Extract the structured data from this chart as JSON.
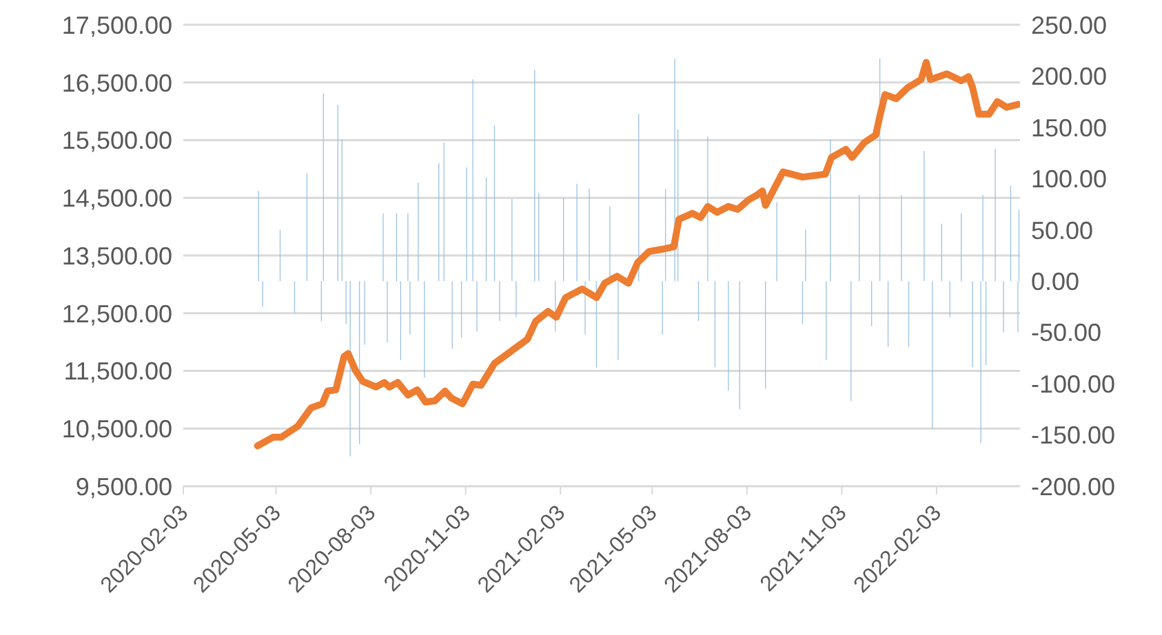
{
  "chart_data": {
    "type": "line",
    "grid": "y",
    "xlim": [
      "2020-02-03",
      "2022-04-25"
    ],
    "xticks": [
      "2020-02-03",
      "2020-05-03",
      "2020-08-03",
      "2020-11-03",
      "2021-02-03",
      "2021-05-03",
      "2021-08-03",
      "2021-11-03",
      "2022-02-03"
    ],
    "ylim": [
      9500,
      17500
    ],
    "yticks": [
      {
        "value": 9500,
        "label": "9,500.00"
      },
      {
        "value": 10500,
        "label": "10,500.00"
      },
      {
        "value": 11500,
        "label": "11,500.00"
      },
      {
        "value": 12500,
        "label": "12,500.00"
      },
      {
        "value": 13500,
        "label": "13,500.00"
      },
      {
        "value": 14500,
        "label": "14,500.00"
      },
      {
        "value": 15500,
        "label": "15,500.00"
      },
      {
        "value": 16500,
        "label": "16,500.00"
      },
      {
        "value": 17500,
        "label": "17,500.00"
      }
    ],
    "y2lim": [
      -200,
      250
    ],
    "y2ticks": [
      {
        "value": -200,
        "label": "-200.00"
      },
      {
        "value": -150,
        "label": "-150.00"
      },
      {
        "value": -100,
        "label": "-100.00"
      },
      {
        "value": -50,
        "label": "-50.00"
      },
      {
        "value": 0,
        "label": "0.00"
      },
      {
        "value": 50,
        "label": "50.00"
      },
      {
        "value": 100,
        "label": "100.00"
      },
      {
        "value": 150,
        "label": "150.00"
      },
      {
        "value": 200,
        "label": "200.00"
      },
      {
        "value": 250,
        "label": "250.00"
      }
    ],
    "series": [
      {
        "type": "bar",
        "axis": "y2",
        "color": "#9dc3e6",
        "x": [
          "2020-04-16",
          "2020-04-20",
          "2020-05-07",
          "2020-05-21",
          "2020-06-02",
          "2020-06-16",
          "2020-06-18",
          "2020-07-02",
          "2020-07-06",
          "2020-07-10",
          "2020-07-14",
          "2020-07-23",
          "2020-07-28",
          "2020-08-15",
          "2020-08-19",
          "2020-08-28",
          "2020-09-01",
          "2020-09-08",
          "2020-09-10",
          "2020-09-18",
          "2020-09-24",
          "2020-10-08",
          "2020-10-13",
          "2020-10-21",
          "2020-10-30",
          "2020-11-04",
          "2020-11-10",
          "2020-11-14",
          "2020-11-23",
          "2020-12-01",
          "2020-12-06",
          "2020-12-18",
          "2020-12-22",
          "2021-01-09",
          "2021-01-13",
          "2021-01-29",
          "2021-02-06",
          "2021-02-19",
          "2021-02-27",
          "2021-03-03",
          "2021-03-10",
          "2021-03-23",
          "2021-03-31",
          "2021-04-20",
          "2021-05-13",
          "2021-05-16",
          "2021-05-25",
          "2021-05-28",
          "2021-06-17",
          "2021-06-26",
          "2021-07-03",
          "2021-07-16",
          "2021-07-27",
          "2021-08-21",
          "2021-09-01",
          "2021-09-26",
          "2021-09-29",
          "2021-10-19",
          "2021-10-23",
          "2021-11-12",
          "2021-11-20",
          "2021-12-02",
          "2021-12-10",
          "2021-12-18",
          "2021-12-31",
          "2022-01-07",
          "2022-01-22",
          "2022-01-30",
          "2022-02-08",
          "2022-02-16",
          "2022-02-27",
          "2022-03-10",
          "2022-03-18",
          "2022-03-20",
          "2022-03-23",
          "2022-04-01",
          "2022-04-09",
          "2022-04-16",
          "2022-04-23",
          "2022-04-24"
        ],
        "values": [
          88,
          -25,
          50,
          -31,
          105,
          -39,
          183,
          172,
          138,
          -42,
          -171,
          -159,
          -62,
          66,
          -60,
          66,
          -77,
          66,
          -52,
          96,
          -94,
          115,
          135,
          -66,
          -55,
          111,
          197,
          -49,
          101,
          152,
          -39,
          80,
          -35,
          206,
          86,
          -49,
          81,
          95,
          -52,
          90,
          -84,
          73,
          -77,
          163,
          -52,
          90,
          217,
          148,
          -39,
          141,
          -84,
          -107,
          -125,
          -105,
          77,
          -42,
          50,
          -77,
          138,
          -117,
          84,
          -44,
          217,
          -64,
          84,
          -64,
          127,
          -144,
          56,
          -35,
          66,
          -84,
          -158,
          84,
          -82,
          129,
          -50,
          93,
          -50,
          70
        ]
      },
      {
        "axis": "y",
        "color": "#ed7d31",
        "x": [
          "2020-04-15",
          "2020-04-30",
          "2020-05-08",
          "2020-05-24",
          "2020-06-06",
          "2020-06-17",
          "2020-06-22",
          "2020-06-30",
          "2020-07-08",
          "2020-07-12",
          "2020-07-19",
          "2020-07-26",
          "2020-08-08",
          "2020-08-16",
          "2020-08-21",
          "2020-08-29",
          "2020-09-08",
          "2020-09-17",
          "2020-09-25",
          "2020-10-04",
          "2020-10-14",
          "2020-10-20",
          "2020-10-31",
          "2020-11-10",
          "2020-11-18",
          "2020-12-01",
          "2020-12-14",
          "2021-01-02",
          "2021-01-10",
          "2021-01-22",
          "2021-01-30",
          "2021-02-08",
          "2021-02-24",
          "2021-03-10",
          "2021-03-18",
          "2021-03-30",
          "2021-04-10",
          "2021-04-19",
          "2021-04-30",
          "2021-05-16",
          "2021-05-24",
          "2021-05-29",
          "2021-06-11",
          "2021-06-19",
          "2021-06-26",
          "2021-07-05",
          "2021-07-16",
          "2021-07-25",
          "2021-08-05",
          "2021-08-12",
          "2021-08-18",
          "2021-08-21",
          "2021-09-07",
          "2021-09-26",
          "2021-10-18",
          "2021-10-24",
          "2021-11-07",
          "2021-11-13",
          "2021-11-25",
          "2021-12-06",
          "2021-12-10",
          "2021-12-15",
          "2021-12-26",
          "2022-01-06",
          "2022-01-19",
          "2022-01-24",
          "2022-01-28",
          "2022-02-13",
          "2022-02-27",
          "2022-03-06",
          "2022-03-10",
          "2022-03-16",
          "2022-03-26",
          "2022-04-03",
          "2022-04-12",
          "2022-04-23"
        ],
        "values": [
          10200,
          10350,
          10350,
          10540,
          10860,
          10930,
          11150,
          11170,
          11750,
          11800,
          11510,
          11320,
          11220,
          11300,
          11220,
          11300,
          11080,
          11170,
          10960,
          10980,
          11150,
          11030,
          10930,
          11270,
          11250,
          11630,
          11800,
          12050,
          12360,
          12530,
          12430,
          12770,
          12920,
          12770,
          13020,
          13140,
          13020,
          13380,
          13570,
          13620,
          13650,
          14130,
          14230,
          14160,
          14350,
          14250,
          14350,
          14300,
          14470,
          14540,
          14620,
          14370,
          14950,
          14860,
          14910,
          15200,
          15340,
          15200,
          15460,
          15590,
          15920,
          16290,
          16220,
          16410,
          16550,
          16850,
          16550,
          16650,
          16530,
          16600,
          16410,
          15950,
          15950,
          16170,
          16070,
          16120
        ]
      }
    ]
  }
}
